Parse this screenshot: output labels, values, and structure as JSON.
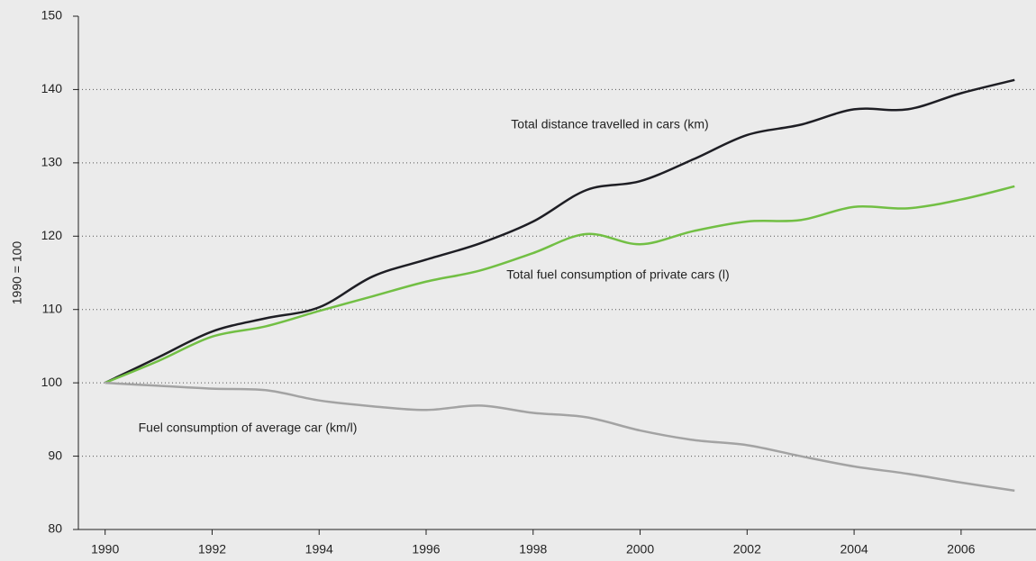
{
  "chart_data": {
    "type": "line",
    "y_label": "1990 = 100",
    "x": [
      1990,
      1991,
      1992,
      1993,
      1994,
      1995,
      1996,
      1997,
      1998,
      1999,
      2000,
      2001,
      2002,
      2003,
      2004,
      2005,
      2006,
      2007
    ],
    "xlim": [
      1989.5,
      2007.4
    ],
    "xticks": [
      1990,
      1992,
      1994,
      1996,
      1998,
      2000,
      2002,
      2004,
      2006
    ],
    "ylim": [
      80,
      150
    ],
    "yticks": [
      80,
      90,
      100,
      110,
      120,
      130,
      140,
      150
    ],
    "grid": true,
    "series": [
      {
        "name": "Total distance travelled in cars (km)",
        "color": "#1e1e24",
        "values": [
          100,
          103.5,
          107,
          108.8,
          110.3,
          114.5,
          116.8,
          119,
          122,
          126.3,
          127.5,
          130.5,
          133.8,
          135.2,
          137.3,
          137.3,
          139.5,
          141.3
        ]
      },
      {
        "name": "Total fuel consumption of private cars (l)",
        "color": "#72bf44",
        "values": [
          100,
          103,
          106.3,
          107.7,
          109.8,
          111.8,
          113.8,
          115.3,
          117.7,
          120.3,
          118.9,
          120.7,
          122,
          122.2,
          124,
          123.8,
          125,
          126.8
        ]
      },
      {
        "name": "Fuel consumption of average car (km/l)",
        "color": "#a3a3a3",
        "values": [
          100,
          99.6,
          99.2,
          99,
          97.6,
          96.8,
          96.3,
          96.9,
          95.9,
          95.3,
          93.5,
          92.2,
          91.5,
          90,
          88.6,
          87.6,
          86.4,
          85.3
        ]
      }
    ]
  }
}
